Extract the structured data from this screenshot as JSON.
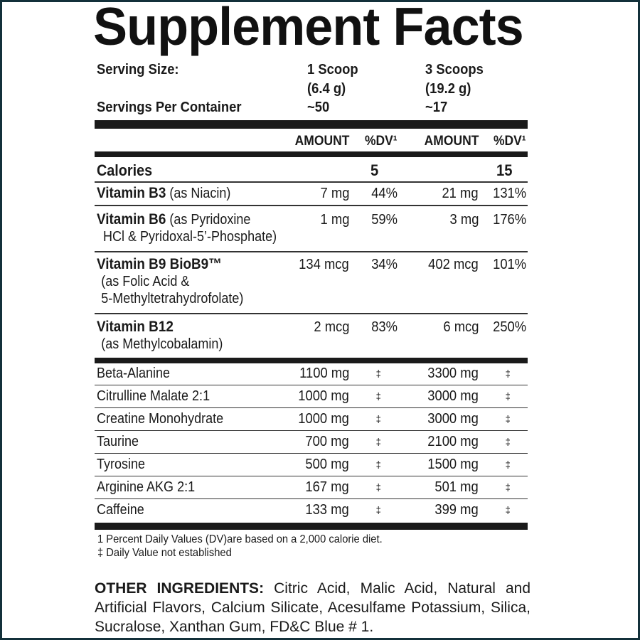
{
  "title": "Supplement Facts",
  "serving": {
    "size_label": "Serving Size:",
    "per_container_label": "Servings Per Container",
    "col1": {
      "size": "1 Scoop",
      "grams": "(6.4 g)",
      "servings": "~50"
    },
    "col2": {
      "size": "3 Scoops",
      "grams": "(19.2 g)",
      "servings": "~17"
    }
  },
  "headers": {
    "amount1": "AMOUNT",
    "dv1": "%DV¹",
    "amount2": "AMOUNT",
    "dv2": "%DV¹"
  },
  "calories": {
    "label": "Calories",
    "amt1": "5",
    "amt2": "15"
  },
  "vitamins": [
    {
      "name": "Vitamin B3",
      "detail": " (as Niacin)",
      "sub": [],
      "amt1": "7 mg",
      "dv1": "44%",
      "amt2": "21 mg",
      "dv2": "131%"
    },
    {
      "name": "Vitamin B6",
      "detail": " (as Pyridoxine",
      "sub": [
        "HCl & Pyridoxal-5’-Phosphate)"
      ],
      "amt1": "1 mg",
      "dv1": "59%",
      "amt2": "3 mg",
      "dv2": "176%"
    },
    {
      "name": "Vitamin B9 BioB9™",
      "detail": "",
      "sub": [
        "(as Folic Acid &",
        "5-Methyltetrahydrofolate)"
      ],
      "amt1": "134 mcg",
      "dv1": "34%",
      "amt2": "402 mcg",
      "dv2": "101%"
    },
    {
      "name": "Vitamin B12",
      "detail": "",
      "sub": [
        "(as Methylcobalamin)"
      ],
      "amt1": "2 mcg",
      "dv1": "83%",
      "amt2": "6 mcg",
      "dv2": "250%"
    }
  ],
  "ingredients": [
    {
      "name": "Beta-Alanine",
      "amt1": "1100 mg",
      "dv1": "‡",
      "amt2": "3300 mg",
      "dv2": "‡"
    },
    {
      "name": "Citrulline Malate 2:1",
      "amt1": "1000 mg",
      "dv1": "‡",
      "amt2": "3000 mg",
      "dv2": "‡"
    },
    {
      "name": "Creatine Monohydrate",
      "amt1": "1000 mg",
      "dv1": "‡",
      "amt2": "3000 mg",
      "dv2": "‡"
    },
    {
      "name": "Taurine",
      "amt1": "700 mg",
      "dv1": "‡",
      "amt2": "2100 mg",
      "dv2": "‡"
    },
    {
      "name": "Tyrosine",
      "amt1": "500 mg",
      "dv1": "‡",
      "amt2": "1500 mg",
      "dv2": "‡"
    },
    {
      "name": "Arginine AKG 2:1",
      "amt1": "167 mg",
      "dv1": "‡",
      "amt2": "501 mg",
      "dv2": "‡"
    },
    {
      "name": "Caffeine",
      "amt1": "133 mg",
      "dv1": "‡",
      "amt2": "399 mg",
      "dv2": "‡"
    }
  ],
  "footnotes": [
    "1 Percent Daily Values (DV)are based on a 2,000 calorie diet.",
    "‡ Daily Value not established"
  ],
  "other_ingredients": {
    "label": "OTHER INGREDIENTS:",
    "text": " Citric Acid, Malic Acid, Natural and Artificial Flavors, Calcium Silicate, Acesulfame Potassium, Silica, Sucralose, Xanthan Gum, FD&C Blue # 1."
  },
  "colors": {
    "frame": "#13303a",
    "text": "#1a1a1a"
  }
}
